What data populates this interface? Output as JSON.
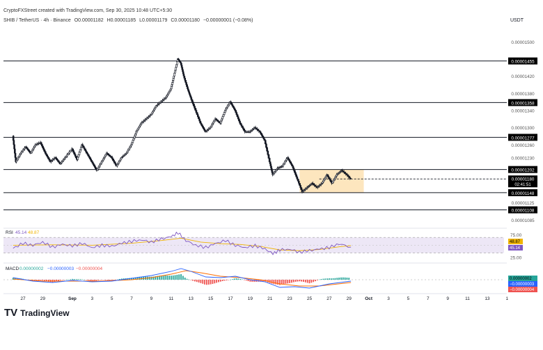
{
  "header": {
    "credit": "CryptoFXStreet created with TradingView.com, Sep 30, 2025 10:48 UTC+5:30",
    "symbol": "SHIB / TetherUS · 4h · Binance",
    "open": "O0.00001182",
    "high": "H0.00001185",
    "low": "L0.00001179",
    "close": "C0.00001180",
    "change": "−0.00000001 (−0.08%)",
    "currency": "USDT"
  },
  "colors": {
    "candle": "#131722",
    "hline": "#131722",
    "box_fill": "#fde2b3",
    "rsi_line": "#7e57c2",
    "rsi_ma": "#f0b400",
    "rsi_band": "#ede7f6",
    "macd_line": "#2962ff",
    "signal_line": "#ff6d00",
    "hist_up": "#26a69a",
    "hist_down": "#ef5350"
  },
  "chart_data": {
    "type": "candlestick",
    "timeframe": "4h",
    "x_ticks": [
      "27",
      "29",
      "Sep",
      "3",
      "5",
      "7",
      "9",
      "11",
      "13",
      "15",
      "17",
      "19",
      "21",
      "23",
      "25",
      "27",
      "29",
      "Oct",
      "3",
      "5",
      "7",
      "9",
      "11",
      "13",
      "1"
    ],
    "price_ticks": [
      "0.00001500",
      "0.00001420",
      "0.00001380",
      "0.00001340",
      "0.00001300",
      "0.00001260",
      "0.00001230",
      "0.00001125",
      "0.00001085"
    ],
    "ylim": [
      1.07e-05,
      1.516e-05
    ],
    "horizontal_levels": [
      {
        "label": "0.00001455",
        "value": 1.455e-05
      },
      {
        "label": "0.00001358",
        "value": 1.358e-05
      },
      {
        "label": "0.00001277",
        "value": 1.277e-05
      },
      {
        "label": "0.00001202",
        "value": 1.202e-05
      },
      {
        "label": "0.00001148",
        "value": 1.148e-05
      },
      {
        "label": "0.00001108",
        "value": 1.108e-05
      }
    ],
    "current_price": {
      "label": "0.00001180",
      "countdown": "02:41:51",
      "value": 1.18e-05
    },
    "consolidation_box": {
      "x_start": "Sep 24",
      "x_end": "Sep 30",
      "top": 1.202e-05,
      "bottom": 1.148e-05
    },
    "price_path": [
      {
        "x": 26.0,
        "y": 1.28e-05
      },
      {
        "x": 26.3,
        "y": 1.22e-05
      },
      {
        "x": 26.8,
        "y": 1.24e-05
      },
      {
        "x": 27.3,
        "y": 1.255e-05
      },
      {
        "x": 27.8,
        "y": 1.24e-05
      },
      {
        "x": 28.3,
        "y": 1.26e-05
      },
      {
        "x": 28.8,
        "y": 1.265e-05
      },
      {
        "x": 29.3,
        "y": 1.24e-05
      },
      {
        "x": 29.8,
        "y": 1.22e-05
      },
      {
        "x": 30.3,
        "y": 1.23e-05
      },
      {
        "x": 30.8,
        "y": 1.215e-05
      },
      {
        "x": 31.3,
        "y": 1.23e-05
      },
      {
        "x": 32.0,
        "y": 1.25e-05
      },
      {
        "x": 32.5,
        "y": 1.225e-05
      },
      {
        "x": 33.0,
        "y": 1.26e-05
      },
      {
        "x": 33.5,
        "y": 1.24e-05
      },
      {
        "x": 34.0,
        "y": 1.22e-05
      },
      {
        "x": 34.5,
        "y": 1.2e-05
      },
      {
        "x": 35.0,
        "y": 1.22e-05
      },
      {
        "x": 35.5,
        "y": 1.24e-05
      },
      {
        "x": 36.0,
        "y": 1.23e-05
      },
      {
        "x": 36.5,
        "y": 1.21e-05
      },
      {
        "x": 37.0,
        "y": 1.23e-05
      },
      {
        "x": 37.5,
        "y": 1.24e-05
      },
      {
        "x": 38.0,
        "y": 1.26e-05
      },
      {
        "x": 38.5,
        "y": 1.29e-05
      },
      {
        "x": 39.0,
        "y": 1.31e-05
      },
      {
        "x": 39.5,
        "y": 1.32e-05
      },
      {
        "x": 40.0,
        "y": 1.33e-05
      },
      {
        "x": 40.5,
        "y": 1.35e-05
      },
      {
        "x": 41.0,
        "y": 1.36e-05
      },
      {
        "x": 41.5,
        "y": 1.37e-05
      },
      {
        "x": 42.0,
        "y": 1.39e-05
      },
      {
        "x": 42.3,
        "y": 1.42e-05
      },
      {
        "x": 42.7,
        "y": 1.46e-05
      },
      {
        "x": 43.0,
        "y": 1.45e-05
      },
      {
        "x": 43.3,
        "y": 1.42e-05
      },
      {
        "x": 43.7,
        "y": 1.39e-05
      },
      {
        "x": 44.0,
        "y": 1.37e-05
      },
      {
        "x": 44.5,
        "y": 1.34e-05
      },
      {
        "x": 45.0,
        "y": 1.31e-05
      },
      {
        "x": 45.5,
        "y": 1.29e-05
      },
      {
        "x": 46.0,
        "y": 1.3e-05
      },
      {
        "x": 46.5,
        "y": 1.32e-05
      },
      {
        "x": 47.0,
        "y": 1.31e-05
      },
      {
        "x": 47.5,
        "y": 1.34e-05
      },
      {
        "x": 48.0,
        "y": 1.36e-05
      },
      {
        "x": 48.5,
        "y": 1.34e-05
      },
      {
        "x": 49.0,
        "y": 1.31e-05
      },
      {
        "x": 49.5,
        "y": 1.29e-05
      },
      {
        "x": 50.0,
        "y": 1.29e-05
      },
      {
        "x": 50.5,
        "y": 1.3e-05
      },
      {
        "x": 51.0,
        "y": 1.29e-05
      },
      {
        "x": 51.5,
        "y": 1.27e-05
      },
      {
        "x": 52.0,
        "y": 1.22e-05
      },
      {
        "x": 52.3,
        "y": 1.19e-05
      },
      {
        "x": 52.8,
        "y": 1.205e-05
      },
      {
        "x": 53.3,
        "y": 1.21e-05
      },
      {
        "x": 53.8,
        "y": 1.23e-05
      },
      {
        "x": 54.3,
        "y": 1.21e-05
      },
      {
        "x": 54.8,
        "y": 1.18e-05
      },
      {
        "x": 55.3,
        "y": 1.15e-05
      },
      {
        "x": 55.8,
        "y": 1.16e-05
      },
      {
        "x": 56.3,
        "y": 1.17e-05
      },
      {
        "x": 56.8,
        "y": 1.16e-05
      },
      {
        "x": 57.3,
        "y": 1.17e-05
      },
      {
        "x": 57.8,
        "y": 1.19e-05
      },
      {
        "x": 58.3,
        "y": 1.17e-05
      },
      {
        "x": 58.8,
        "y": 1.19e-05
      },
      {
        "x": 59.3,
        "y": 1.2e-05
      },
      {
        "x": 59.8,
        "y": 1.19e-05
      },
      {
        "x": 60.2,
        "y": 1.18e-05
      }
    ],
    "rsi": {
      "label": "RSI",
      "value": "45.14",
      "ma": "48.87",
      "ticks": [
        "75.00",
        "25.00"
      ],
      "levels": [
        70,
        30
      ],
      "path": [
        {
          "x": 26.0,
          "y": 42
        },
        {
          "x": 27.0,
          "y": 55
        },
        {
          "x": 28.0,
          "y": 50
        },
        {
          "x": 29.0,
          "y": 58
        },
        {
          "x": 30.0,
          "y": 45
        },
        {
          "x": 31.0,
          "y": 52
        },
        {
          "x": 32.0,
          "y": 48
        },
        {
          "x": 33.0,
          "y": 55
        },
        {
          "x": 34.0,
          "y": 44
        },
        {
          "x": 35.0,
          "y": 50
        },
        {
          "x": 36.0,
          "y": 47
        },
        {
          "x": 37.0,
          "y": 55
        },
        {
          "x": 38.0,
          "y": 60
        },
        {
          "x": 39.0,
          "y": 64
        },
        {
          "x": 40.0,
          "y": 58
        },
        {
          "x": 41.0,
          "y": 66
        },
        {
          "x": 42.0,
          "y": 72
        },
        {
          "x": 42.7,
          "y": 82
        },
        {
          "x": 43.5,
          "y": 62
        },
        {
          "x": 44.5,
          "y": 50
        },
        {
          "x": 45.5,
          "y": 44
        },
        {
          "x": 46.5,
          "y": 54
        },
        {
          "x": 47.5,
          "y": 62
        },
        {
          "x": 48.5,
          "y": 50
        },
        {
          "x": 49.5,
          "y": 44
        },
        {
          "x": 50.5,
          "y": 49
        },
        {
          "x": 51.5,
          "y": 40
        },
        {
          "x": 52.3,
          "y": 28
        },
        {
          "x": 53.0,
          "y": 38
        },
        {
          "x": 54.0,
          "y": 40
        },
        {
          "x": 55.0,
          "y": 32
        },
        {
          "x": 56.0,
          "y": 36
        },
        {
          "x": 57.0,
          "y": 40
        },
        {
          "x": 58.0,
          "y": 44
        },
        {
          "x": 59.0,
          "y": 54
        },
        {
          "x": 60.2,
          "y": 45
        }
      ],
      "ma_path": [
        {
          "x": 26.0,
          "y": 50
        },
        {
          "x": 30.0,
          "y": 51
        },
        {
          "x": 34.0,
          "y": 50
        },
        {
          "x": 38.0,
          "y": 55
        },
        {
          "x": 41.0,
          "y": 62
        },
        {
          "x": 43.0,
          "y": 68
        },
        {
          "x": 45.0,
          "y": 58
        },
        {
          "x": 47.0,
          "y": 54
        },
        {
          "x": 49.0,
          "y": 52
        },
        {
          "x": 51.0,
          "y": 47
        },
        {
          "x": 53.0,
          "y": 38
        },
        {
          "x": 55.0,
          "y": 36
        },
        {
          "x": 57.0,
          "y": 39
        },
        {
          "x": 59.0,
          "y": 46
        },
        {
          "x": 60.2,
          "y": 49
        }
      ]
    },
    "macd": {
      "label": "MACD",
      "v1": "0.00000002",
      "v2": "−0.00000003",
      "v3": "−0.00000004",
      "macd_path": [
        {
          "x": 26.0,
          "y": 0.3
        },
        {
          "x": 28.0,
          "y": -0.2
        },
        {
          "x": 30.0,
          "y": -0.4
        },
        {
          "x": 32.0,
          "y": -0.1
        },
        {
          "x": 34.0,
          "y": -0.3
        },
        {
          "x": 36.0,
          "y": -0.2
        },
        {
          "x": 38.0,
          "y": 0.2
        },
        {
          "x": 40.0,
          "y": 0.6
        },
        {
          "x": 42.0,
          "y": 1.2
        },
        {
          "x": 43.0,
          "y": 1.6
        },
        {
          "x": 44.0,
          "y": 1.2
        },
        {
          "x": 45.5,
          "y": 0.4
        },
        {
          "x": 47.0,
          "y": 0.3
        },
        {
          "x": 48.5,
          "y": 0.5
        },
        {
          "x": 50.0,
          "y": 0.0
        },
        {
          "x": 51.5,
          "y": -0.3
        },
        {
          "x": 53.0,
          "y": -1.1
        },
        {
          "x": 54.5,
          "y": -1.0
        },
        {
          "x": 56.0,
          "y": -1.2
        },
        {
          "x": 58.0,
          "y": -0.6
        },
        {
          "x": 60.2,
          "y": -0.2
        }
      ],
      "signal_path": [
        {
          "x": 26.0,
          "y": 0.1
        },
        {
          "x": 29.0,
          "y": -0.2
        },
        {
          "x": 32.0,
          "y": -0.2
        },
        {
          "x": 35.0,
          "y": -0.2
        },
        {
          "x": 38.0,
          "y": 0.0
        },
        {
          "x": 40.0,
          "y": 0.3
        },
        {
          "x": 42.0,
          "y": 0.8
        },
        {
          "x": 43.5,
          "y": 1.3
        },
        {
          "x": 45.0,
          "y": 1.0
        },
        {
          "x": 47.0,
          "y": 0.5
        },
        {
          "x": 49.0,
          "y": 0.3
        },
        {
          "x": 51.0,
          "y": 0.0
        },
        {
          "x": 53.0,
          "y": -0.6
        },
        {
          "x": 55.0,
          "y": -0.9
        },
        {
          "x": 57.0,
          "y": -0.9
        },
        {
          "x": 60.2,
          "y": -0.4
        }
      ],
      "ylim": [
        -1.6,
        2.0
      ]
    }
  },
  "watermark": "TradingView"
}
